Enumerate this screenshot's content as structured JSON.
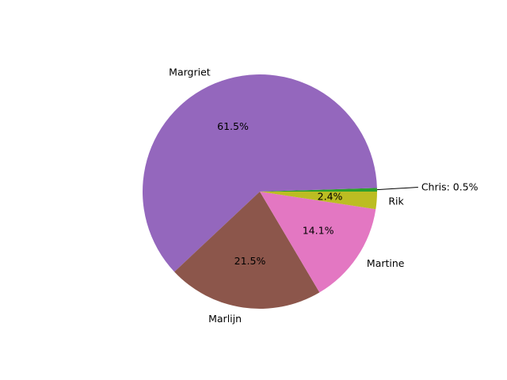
{
  "chart_data": {
    "type": "pie",
    "title": "",
    "slices": [
      {
        "label": "Chris",
        "value": 0.5,
        "pct_label": "Chris: 0.5%",
        "color": "#2ca02c",
        "callout": true
      },
      {
        "label": "Margriet",
        "value": 61.5,
        "pct_label": "61.5%",
        "color": "#9467bd"
      },
      {
        "label": "Marlijn",
        "value": 21.5,
        "pct_label": "21.5%",
        "color": "#8c564b"
      },
      {
        "label": "Martine",
        "value": 14.1,
        "pct_label": "14.1%",
        "color": "#e377c2"
      },
      {
        "label": "Rik",
        "value": 2.4,
        "pct_label": "2.4%",
        "color": "#bcbd22"
      }
    ],
    "start_angle_deg": 0,
    "direction": "counterclockwise",
    "legend": "none"
  }
}
